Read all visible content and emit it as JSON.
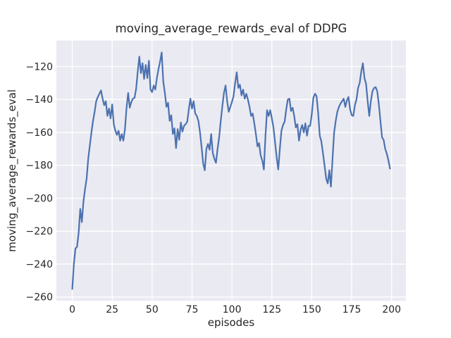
{
  "figure": {
    "title": "moving_average_rewards_eval of DDPG",
    "xlabel": "episodes",
    "ylabel": "moving_average_rewards_eval"
  },
  "chart_data": {
    "type": "line",
    "title": "moving_average_rewards_eval of DDPG",
    "xlabel": "episodes",
    "ylabel": "moving_average_rewards_eval",
    "x_ticks": [
      0,
      25,
      50,
      75,
      100,
      125,
      150,
      175,
      200
    ],
    "y_ticks": [
      -120,
      -140,
      -160,
      -180,
      -200,
      -220,
      -240,
      -260
    ],
    "xlim": [
      -9.95,
      208.95
    ],
    "ylim": [
      -262.3,
      -104.2
    ],
    "grid": true,
    "legend": false,
    "colors": {
      "line": "#4c72b0",
      "plot_background": "#eaeaf2",
      "grid": "#ffffff",
      "text": "#262626"
    },
    "series": [
      {
        "name": "moving_average_rewards_eval",
        "x_start": 0,
        "x_step": 1,
        "values": [
          -255.1,
          -240,
          -230.5,
          -229.5,
          -221,
          -206.5,
          -214.5,
          -202,
          -194.5,
          -188,
          -176,
          -168,
          -160,
          -153,
          -147.5,
          -141,
          -138.5,
          -136.5,
          -134.5,
          -139.5,
          -143.5,
          -141,
          -150,
          -145.5,
          -151.5,
          -143,
          -155,
          -159,
          -161.5,
          -159,
          -165,
          -161,
          -165,
          -158,
          -145,
          -136,
          -145,
          -141.5,
          -139.5,
          -139,
          -133.5,
          -123,
          -114,
          -124,
          -118,
          -127.5,
          -119,
          -127,
          -116.5,
          -134,
          -135.5,
          -131.5,
          -134,
          -127,
          -121.5,
          -117,
          -111.4,
          -129,
          -136,
          -144.5,
          -142,
          -153,
          -149.5,
          -161,
          -157.5,
          -169.5,
          -158,
          -164.5,
          -154,
          -159.5,
          -156,
          -155,
          -153.5,
          -146,
          -139.5,
          -145.5,
          -141,
          -148.5,
          -150,
          -153,
          -160,
          -169,
          -179,
          -183,
          -170,
          -167,
          -170.5,
          -161,
          -172.5,
          -176,
          -178.5,
          -170,
          -163,
          -153,
          -144,
          -136,
          -131.5,
          -141,
          -147.5,
          -144.5,
          -141.5,
          -138,
          -130,
          -123.5,
          -133,
          -131,
          -137.5,
          -134,
          -139.5,
          -136.5,
          -140,
          -144.5,
          -150,
          -148.5,
          -154.5,
          -161,
          -168.5,
          -166.5,
          -174,
          -177,
          -182.5,
          -162,
          -146.5,
          -150,
          -146.5,
          -151.5,
          -157,
          -166,
          -175,
          -182.5,
          -170,
          -159,
          -155.5,
          -153.5,
          -146,
          -140,
          -139.5,
          -147,
          -145,
          -150,
          -157,
          -155,
          -165,
          -158.5,
          -155.5,
          -160,
          -154.5,
          -162,
          -156,
          -156,
          -149,
          -139,
          -136.5,
          -138,
          -148,
          -162,
          -165.5,
          -172.5,
          -180,
          -188,
          -191,
          -183,
          -193,
          -176,
          -160,
          -153,
          -147.5,
          -144.5,
          -142.5,
          -141,
          -139.5,
          -144.5,
          -140.5,
          -138.5,
          -146,
          -149.5,
          -150,
          -143.5,
          -140,
          -133,
          -130,
          -123,
          -118,
          -127,
          -130.5,
          -141,
          -150,
          -141,
          -135,
          -133,
          -132.5,
          -135,
          -143,
          -153,
          -163,
          -164.5,
          -170,
          -173,
          -177,
          -182
        ]
      }
    ]
  }
}
